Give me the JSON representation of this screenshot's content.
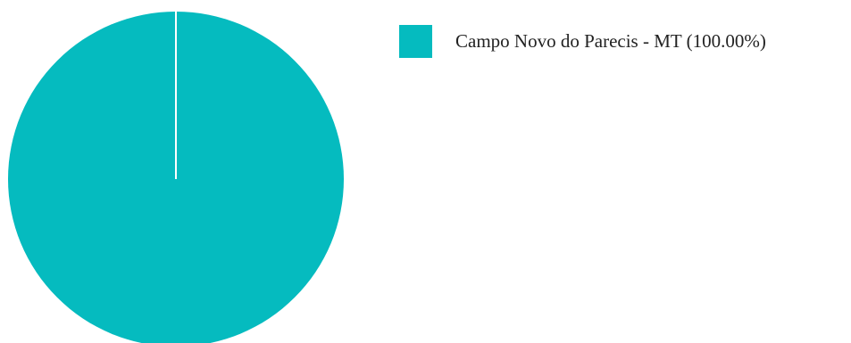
{
  "chart_data": {
    "type": "pie",
    "slices": [
      {
        "label": "Campo Novo do Parecis - MT",
        "value": 100.0,
        "percent_label": "(100.00%)",
        "color": "#05BBBF"
      }
    ],
    "legend": {
      "placement": "top-right",
      "entries": [
        "Campo Novo do Parecis - MT (100.00%)"
      ]
    }
  }
}
